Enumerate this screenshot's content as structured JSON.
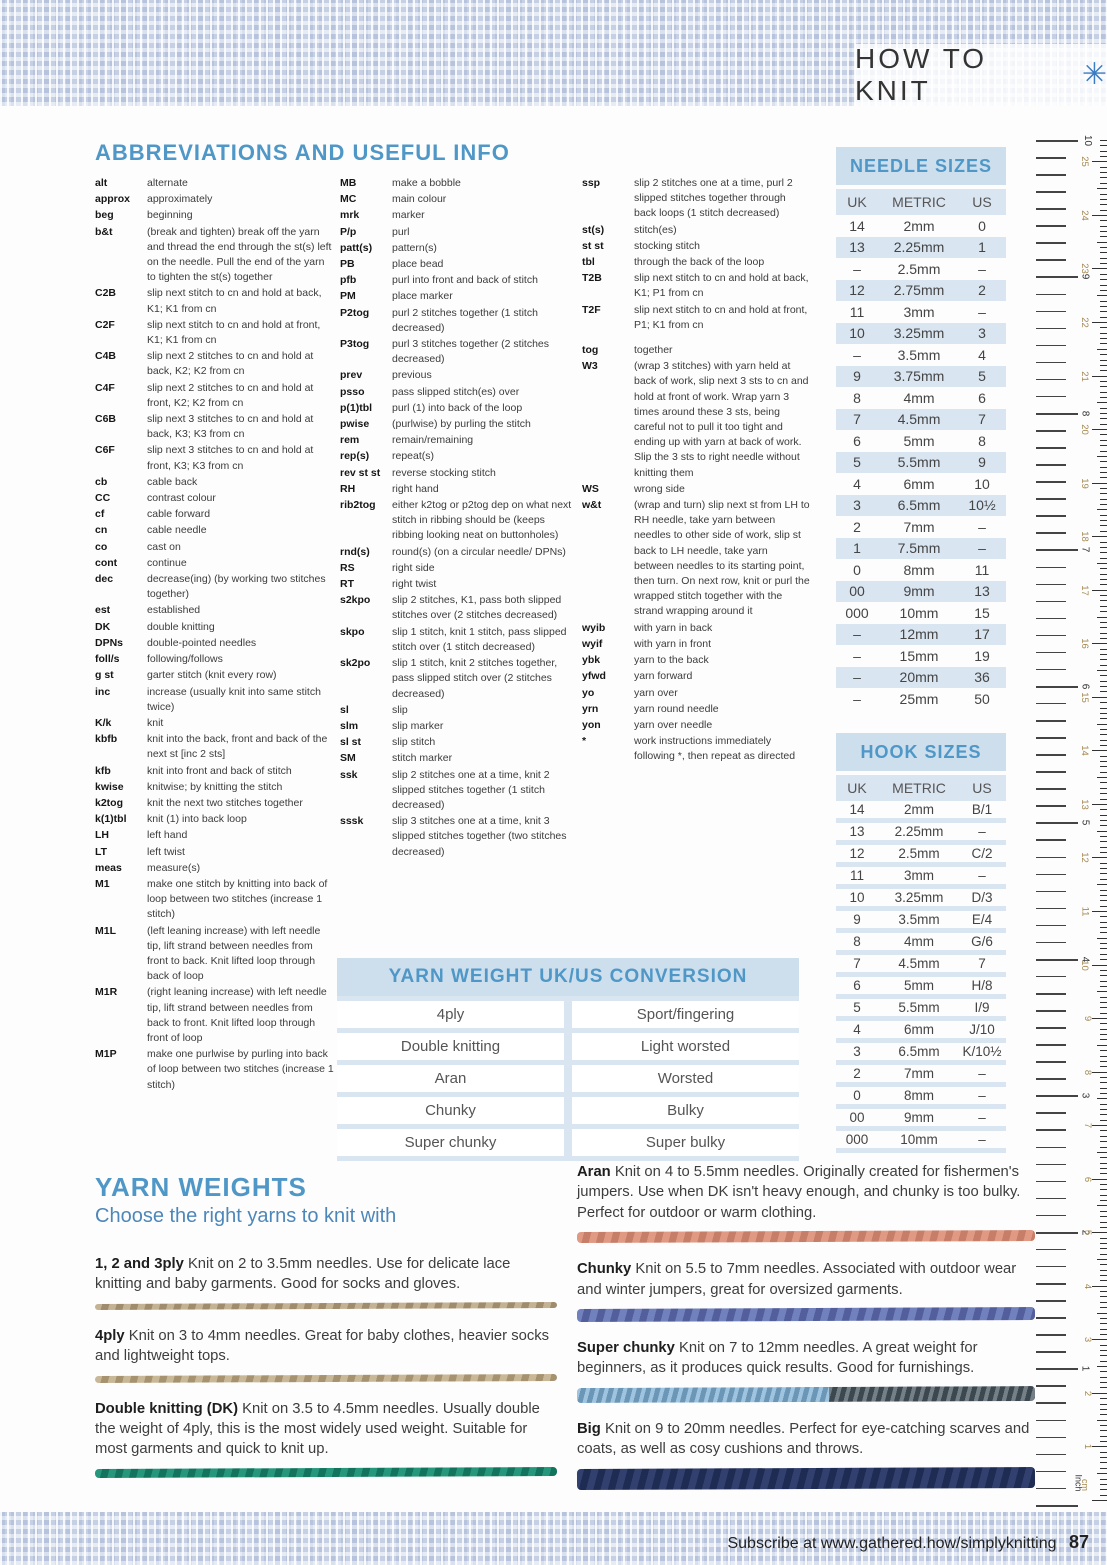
{
  "header": {
    "title": "HOW TO KNIT",
    "asterisk": "✳"
  },
  "abbreviations": {
    "title": "ABBREVIATIONS AND USEFUL INFO",
    "columns": [
      [
        {
          "t": "alt",
          "d": "alternate"
        },
        {
          "t": "approx",
          "d": "approximately"
        },
        {
          "t": "beg",
          "d": "beginning"
        },
        {
          "t": "b&t",
          "d": "(break and tighten) break off the yarn and thread the end through the st(s) left on the needle. Pull the end of the yarn to tighten the st(s) together"
        },
        {
          "t": "C2B",
          "d": "slip next stitch to cn and hold at back, K1; K1 from cn"
        },
        {
          "t": "C2F",
          "d": "slip next stitch to cn and hold at front, K1; K1 from cn"
        },
        {
          "t": "C4B",
          "d": "slip next 2 stitches to cn and hold at back, K2; K2 from cn"
        },
        {
          "t": "C4F",
          "d": "slip next 2 stitches to cn and hold at front, K2; K2 from cn"
        },
        {
          "t": "C6B",
          "d": "slip next 3 stitches to cn and hold at back, K3; K3 from cn"
        },
        {
          "t": "C6F",
          "d": "slip next 3 stitches to cn and hold at front, K3; K3 from cn"
        },
        {
          "t": "cb",
          "d": "cable back"
        },
        {
          "t": "CC",
          "d": "contrast colour"
        },
        {
          "t": "cf",
          "d": "cable forward"
        },
        {
          "t": "cn",
          "d": "cable needle"
        },
        {
          "t": "co",
          "d": "cast on"
        },
        {
          "t": "cont",
          "d": "continue"
        },
        {
          "t": "dec",
          "d": "decrease(ing) (by working two stitches together)"
        },
        {
          "t": "est",
          "d": "established"
        },
        {
          "t": "DK",
          "d": "double knitting"
        },
        {
          "t": "DPNs",
          "d": "double-pointed needles"
        },
        {
          "t": "foll/s",
          "d": "following/follows"
        },
        {
          "t": "g st",
          "d": "garter stitch (knit every row)"
        },
        {
          "t": "inc",
          "d": "increase (usually knit into same stitch twice)"
        },
        {
          "t": "K/k",
          "d": "knit"
        },
        {
          "t": "kbfb",
          "d": "knit into the back, front and back of the next st [inc 2 sts]"
        },
        {
          "t": "kfb",
          "d": "knit into front and back of stitch"
        },
        {
          "t": "kwise",
          "d": "knitwise; by knitting the stitch"
        },
        {
          "t": "k2tog",
          "d": "knit the next two stitches together"
        },
        {
          "t": "k(1)tbl",
          "d": "knit (1) into back loop"
        },
        {
          "t": "LH",
          "d": "left hand"
        },
        {
          "t": "LT",
          "d": "left twist"
        },
        {
          "t": "meas",
          "d": "measure(s)"
        },
        {
          "t": "M1",
          "d": "make one stitch by knitting into back of loop between two stitches (increase 1 stitch)"
        },
        {
          "t": "M1L",
          "d": "(left leaning increase) with left needle tip, lift strand between needles from front to back. Knit lifted loop through back of loop"
        },
        {
          "t": "M1R",
          "d": "(right leaning increase) with left needle tip, lift strand between needles from back to front. Knit lifted loop through front of loop"
        },
        {
          "t": "M1P",
          "d": "make one purlwise by purling into back of loop between two stitches (increase 1 stitch)"
        }
      ],
      [
        {
          "t": "MB",
          "d": "make a bobble"
        },
        {
          "t": "MC",
          "d": "main colour"
        },
        {
          "t": "mrk",
          "d": "marker"
        },
        {
          "t": "P/p",
          "d": "purl"
        },
        {
          "t": "patt(s)",
          "d": "pattern(s)"
        },
        {
          "t": "PB",
          "d": "place bead"
        },
        {
          "t": "pfb",
          "d": "purl into front and back of stitch"
        },
        {
          "t": "PM",
          "d": "place marker"
        },
        {
          "t": "P2tog",
          "d": "purl 2 stitches together (1 stitch decreased)"
        },
        {
          "t": "P3tog",
          "d": "purl 3 stitches together (2 stitches decreased)"
        },
        {
          "t": "prev",
          "d": "previous"
        },
        {
          "t": "psso",
          "d": "pass slipped stitch(es) over"
        },
        {
          "t": "p(1)tbl",
          "d": "purl (1) into back of the loop"
        },
        {
          "t": "pwise",
          "d": "(purlwise) by purling the stitch"
        },
        {
          "t": "rem",
          "d": "remain/remaining"
        },
        {
          "t": "rep(s)",
          "d": "repeat(s)"
        },
        {
          "t": "rev st st",
          "d": "reverse stocking stitch"
        },
        {
          "t": "RH",
          "d": "right hand"
        },
        {
          "t": "rib2tog",
          "d": "either k2tog or p2tog dep on what next stitch in ribbing should be (keeps ribbing looking neat on buttonholes)"
        },
        {
          "t": "rnd(s)",
          "d": "round(s) (on a circular needle/ DPNs)"
        },
        {
          "t": "RS",
          "d": "right side"
        },
        {
          "t": "RT",
          "d": "right twist"
        },
        {
          "t": "s2kpo",
          "d": "slip 2 stitches, K1, pass both slipped stitches over (2 stitches decreased)"
        },
        {
          "t": "skpo",
          "d": "slip 1 stitch, knit 1 stitch, pass slipped stitch over (1 stitch decreased)"
        },
        {
          "t": "sk2po",
          "d": "slip 1 stitch, knit 2 stitches together, pass slipped stitch over (2 stitches decreased)"
        },
        {
          "t": "sl",
          "d": "slip"
        },
        {
          "t": "slm",
          "d": "slip marker"
        },
        {
          "t": "sl st",
          "d": "slip stitch"
        },
        {
          "t": "SM",
          "d": "stitch marker"
        },
        {
          "t": "ssk",
          "d": "slip 2 stitches one at a time, knit 2 slipped stitches together (1 stitch decreased)"
        },
        {
          "t": "sssk",
          "d": "slip 3 stitches one at a time, knit 3 slipped stitches together (two stitches decreased)"
        }
      ],
      [
        {
          "t": "ssp",
          "d": "slip 2 stitches one at a time, purl 2 slipped stitches together through back loops (1 stitch decreased)"
        },
        {
          "t": "st(s)",
          "d": "stitch(es)"
        },
        {
          "t": "st st",
          "d": "stocking stitch"
        },
        {
          "t": "tbl",
          "d": "through the back of the loop"
        },
        {
          "t": "T2B",
          "d": "slip next stitch to cn and hold at back, K1; P1 from cn"
        },
        {
          "t": "T2F",
          "d": "slip next stitch to cn and hold at front, P1; K1 from cn"
        },
        {
          "t": "tog",
          "d": "together",
          "gap": true
        },
        {
          "t": "W3",
          "d": "(wrap 3 stitches) with yarn held at back of work, slip next 3 sts to cn and hold at front of work. Wrap yarn 3 times around these 3 sts, being careful not to pull it too tight and ending up with yarn at back of work. Slip the 3 sts to right needle without knitting them"
        },
        {
          "t": "WS",
          "d": "wrong side"
        },
        {
          "t": "w&t",
          "d": "(wrap and turn) slip next st from LH to RH needle, take yarn between needles to other side of work, slip st back to LH needle, take yarn between needles to its starting point, then turn. On next row, knit or purl the wrapped stitch together with the strand wrapping around it"
        },
        {
          "t": "wyib",
          "d": "with yarn in back"
        },
        {
          "t": "wyif",
          "d": "with yarn in front"
        },
        {
          "t": "ybk",
          "d": "yarn to the back"
        },
        {
          "t": "yfwd",
          "d": "yarn forward"
        },
        {
          "t": "yo",
          "d": "yarn over"
        },
        {
          "t": "yrn",
          "d": "yarn round needle"
        },
        {
          "t": "yon",
          "d": "yarn over needle"
        },
        {
          "t": "*",
          "d": "work instructions immediately following *, then repeat as directed"
        }
      ]
    ]
  },
  "needle_sizes": {
    "title": "NEEDLE SIZES",
    "headers": [
      "UK",
      "METRIC",
      "US"
    ],
    "rows": [
      [
        "14",
        "2mm",
        "0"
      ],
      [
        "13",
        "2.25mm",
        "1"
      ],
      [
        "–",
        "2.5mm",
        "–"
      ],
      [
        "12",
        "2.75mm",
        "2"
      ],
      [
        "11",
        "3mm",
        "–"
      ],
      [
        "10",
        "3.25mm",
        "3"
      ],
      [
        "–",
        "3.5mm",
        "4"
      ],
      [
        "9",
        "3.75mm",
        "5"
      ],
      [
        "8",
        "4mm",
        "6"
      ],
      [
        "7",
        "4.5mm",
        "7"
      ],
      [
        "6",
        "5mm",
        "8"
      ],
      [
        "5",
        "5.5mm",
        "9"
      ],
      [
        "4",
        "6mm",
        "10"
      ],
      [
        "3",
        "6.5mm",
        "10½"
      ],
      [
        "2",
        "7mm",
        "–"
      ],
      [
        "1",
        "7.5mm",
        "–"
      ],
      [
        "0",
        "8mm",
        "11"
      ],
      [
        "00",
        "9mm",
        "13"
      ],
      [
        "000",
        "10mm",
        "15"
      ],
      [
        "–",
        "12mm",
        "17"
      ],
      [
        "–",
        "15mm",
        "19"
      ],
      [
        "–",
        "20mm",
        "36"
      ],
      [
        "–",
        "25mm",
        "50"
      ]
    ]
  },
  "hook_sizes": {
    "title": "HOOK SIZES",
    "headers": [
      "UK",
      "METRIC",
      "US"
    ],
    "rows": [
      [
        "14",
        "2mm",
        "B/1"
      ],
      [
        "13",
        "2.25mm",
        "–"
      ],
      [
        "12",
        "2.5mm",
        "C/2"
      ],
      [
        "11",
        "3mm",
        "–"
      ],
      [
        "10",
        "3.25mm",
        "D/3"
      ],
      [
        "9",
        "3.5mm",
        "E/4"
      ],
      [
        "8",
        "4mm",
        "G/6"
      ],
      [
        "7",
        "4.5mm",
        "7"
      ],
      [
        "6",
        "5mm",
        "H/8"
      ],
      [
        "5",
        "5.5mm",
        "I/9"
      ],
      [
        "4",
        "6mm",
        "J/10"
      ],
      [
        "3",
        "6.5mm",
        "K/10½"
      ],
      [
        "2",
        "7mm",
        "–"
      ],
      [
        "0",
        "8mm",
        "–"
      ],
      [
        "00",
        "9mm",
        "–"
      ],
      [
        "000",
        "10mm",
        "–"
      ]
    ]
  },
  "yarn_conversion": {
    "title": "YARN WEIGHT UK/US CONVERSION",
    "rows": [
      [
        "4ply",
        "Sport/fingering"
      ],
      [
        "Double knitting",
        "Light worsted"
      ],
      [
        "Aran",
        "Worsted"
      ],
      [
        "Chunky",
        "Bulky"
      ],
      [
        "Super chunky",
        "Super bulky"
      ]
    ]
  },
  "yarn_weights": {
    "title": "YARN WEIGHTS",
    "subtitle": "Choose the right yarns to knit with",
    "left": [
      {
        "term": "1, 2 and 3ply",
        "text": "Knit on 2 to 3.5mm needles. Use for delicate lace knitting and baby garments. Good for socks and gloves.",
        "yarn": {
          "h": 6,
          "c1": "#c4b295",
          "c2": "#a08c6c"
        }
      },
      {
        "term": "4ply",
        "text": "Knit on 3 to 4mm needles. Great for baby clothes, heavier socks and lightweight tops.",
        "yarn": {
          "h": 7,
          "c1": "#c9b897",
          "c2": "#a6926f"
        }
      },
      {
        "term": "Double knitting (DK)",
        "text": "Knit on 3.5 to 4.5mm needles. Usually double the weight of 4ply, this is the most widely used weight. Suitable for most garments and quick to knit up.",
        "yarn": {
          "h": 9,
          "c1": "#27977b",
          "c2": "#12745d"
        }
      }
    ],
    "right": [
      {
        "term": "Aran",
        "text": "Knit on 4 to 5.5mm needles. Originally created for fishermen's jumpers. Use when DK isn't heavy enough, and chunky is too bulky. Perfect for outdoor or warm clothing.",
        "yarn": {
          "h": 11,
          "c1": "#e09a84",
          "c2": "#c77e68"
        }
      },
      {
        "term": "Chunky",
        "text": "Knit on 5.5 to 7mm needles. Associated with outdoor wear and winter jumpers, great for oversized garments.",
        "yarn": {
          "h": 13,
          "c1": "#7181bd",
          "c2": "#525f9c"
        }
      },
      {
        "term": "Super chunky",
        "text": "Knit on 7 to 12mm needles. A great weight for beginners, as it produces quick results. Good for furnishings.",
        "yarn": {
          "h": 15,
          "c1": "#7fb0d6",
          "c2": "#47555e",
          "split": true
        }
      },
      {
        "term": "Big",
        "text": "Knit on 9 to 20mm needles. Perfect for eye-catching scarves and coats, as well as cosy cushions and throws.",
        "yarn": {
          "h": 21,
          "c1": "#32406f",
          "c2": "#1e2b52"
        }
      }
    ]
  },
  "ruler": {
    "inch_label": "Inch",
    "cm_label": "cm",
    "inch_max": 10,
    "cm_max": 25
  },
  "footer": {
    "text": "Subscribe at www.gathered.how/simplyknitting",
    "page": "87"
  },
  "colors": {
    "heading_blue": "#4f97c7",
    "band_blue": "#cddeed",
    "row_blue": "#d9e5f1",
    "star_blue": "#3b7cc2"
  }
}
